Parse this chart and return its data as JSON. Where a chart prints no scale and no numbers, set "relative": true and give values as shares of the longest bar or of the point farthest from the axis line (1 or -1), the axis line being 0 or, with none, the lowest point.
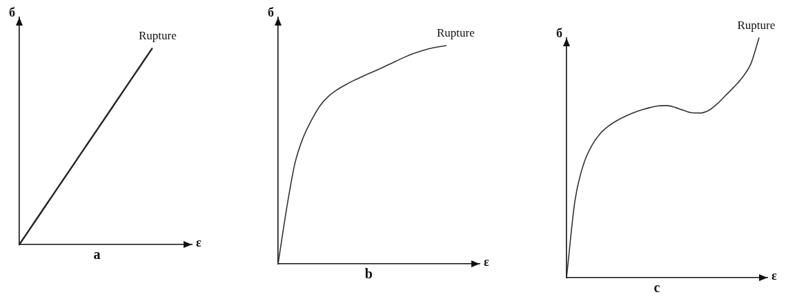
{
  "chart_data": [
    {
      "type": "line",
      "title": "a",
      "xlabel": "ε",
      "ylabel": "б",
      "relative": true,
      "categories": [
        null,
        null,
        null,
        null,
        null,
        null,
        null,
        null,
        null,
        null,
        null,
        null,
        null,
        null
      ],
      "values": [
        0,
        0.1,
        0.2,
        0.3,
        0.4,
        0.5,
        0.6,
        0.7,
        0.8,
        0.9,
        1,
        null,
        null,
        null
      ],
      "color": "#222222",
      "annotations": [
        "Rupture"
      ]
    },
    {
      "type": "line",
      "title": "b",
      "xlabel": "ε",
      "ylabel": "б",
      "relative": true,
      "categories": [
        null,
        null,
        null,
        null,
        null,
        null,
        null,
        null,
        null,
        null,
        null,
        null,
        null,
        null,
        null,
        null,
        null,
        null,
        null,
        null,
        null,
        null,
        null,
        null,
        null
      ],
      "values": [
        0,
        0.25,
        0.46,
        0.58,
        0.66,
        0.725,
        0.768,
        0.797,
        0.82,
        0.84,
        0.858,
        0.875,
        0.892,
        0.91,
        0.928,
        0.946,
        0.962,
        0.975,
        0.986,
        0.994,
        1,
        null,
        null,
        null,
        null
      ],
      "color": "#333333",
      "annotations": [
        "Rupture"
      ]
    },
    {
      "type": "line",
      "title": "c",
      "xlabel": "ε",
      "ylabel": "б",
      "relative": true,
      "categories": [
        null,
        null,
        null,
        null,
        null,
        null,
        null,
        null,
        null,
        null,
        null,
        null,
        null,
        null,
        null,
        null,
        null,
        null,
        null,
        null,
        null,
        null,
        null,
        null,
        null
      ],
      "values": [
        0,
        0.32,
        0.47,
        0.55,
        0.6,
        0.632,
        0.655,
        0.673,
        0.688,
        0.7,
        0.71,
        0.717,
        0.718,
        0.71,
        0.698,
        0.688,
        0.687,
        0.698,
        0.725,
        0.76,
        0.795,
        0.835,
        0.89,
        1,
        null
      ],
      "color": "#333333",
      "annotations": [
        "Rupture"
      ]
    }
  ]
}
